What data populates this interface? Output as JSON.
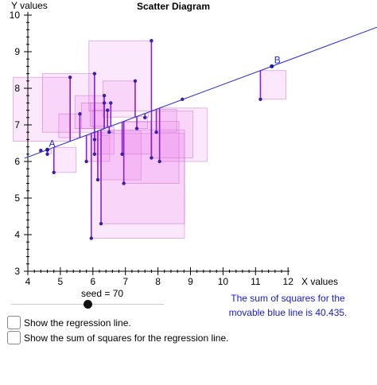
{
  "chart_data": {
    "type": "scatter",
    "title": "Scatter Diagram",
    "xlabel": "X values",
    "ylabel": "Y values",
    "xlim": [
      4,
      12
    ],
    "ylim": [
      3,
      10
    ],
    "xticks": [
      "4",
      "5",
      "6",
      "7",
      "8",
      "9",
      "10",
      "11",
      "12"
    ],
    "yticks": [
      "3",
      "4",
      "5",
      "6",
      "7",
      "8",
      "9",
      "10"
    ],
    "points": [
      {
        "x": 4.4,
        "y": 6.3
      },
      {
        "x": 4.6,
        "y": 6.2
      },
      {
        "x": 4.8,
        "y": 5.7
      },
      {
        "x": 5.3,
        "y": 8.3
      },
      {
        "x": 5.6,
        "y": 7.3
      },
      {
        "x": 5.8,
        "y": 6.0
      },
      {
        "x": 5.95,
        "y": 3.9
      },
      {
        "x": 6.05,
        "y": 8.4
      },
      {
        "x": 6.05,
        "y": 6.6
      },
      {
        "x": 6.05,
        "y": 6.2
      },
      {
        "x": 6.15,
        "y": 5.5
      },
      {
        "x": 6.25,
        "y": 4.3
      },
      {
        "x": 6.35,
        "y": 7.8
      },
      {
        "x": 6.35,
        "y": 7.6
      },
      {
        "x": 6.45,
        "y": 7.4
      },
      {
        "x": 6.5,
        "y": 6.8
      },
      {
        "x": 6.55,
        "y": 7.6
      },
      {
        "x": 6.9,
        "y": 6.2
      },
      {
        "x": 6.95,
        "y": 5.4
      },
      {
        "x": 7.3,
        "y": 8.2
      },
      {
        "x": 7.35,
        "y": 6.9
      },
      {
        "x": 7.6,
        "y": 7.2
      },
      {
        "x": 7.8,
        "y": 9.3
      },
      {
        "x": 7.8,
        "y": 6.1
      },
      {
        "x": 7.95,
        "y": 6.8
      },
      {
        "x": 8.05,
        "y": 6.0
      },
      {
        "x": 8.75,
        "y": 7.7
      },
      {
        "x": 11.15,
        "y": 7.7
      }
    ],
    "line": {
      "x1": 4.6,
      "y1": 6.32,
      "x2": 11.5,
      "y2": 8.6
    },
    "point_labels": [
      "A",
      "B"
    ],
    "annotations": {
      "label_a": "A",
      "label_b": "B"
    },
    "colors": {
      "line": "#2222dd",
      "points": "#3a1fa8",
      "residual": "#8a22c8",
      "square_fill": "#ee82ee",
      "square_stroke": "#c060c0"
    },
    "grid": false
  },
  "controls": {
    "seed_label": "seed = 70",
    "seed_value": 70,
    "sum_of_squares_text_line1": "The sum of squares for the",
    "sum_of_squares_text_line2": "movable blue line is 40.435.",
    "checkbox_regression_label": "Show the regression line.",
    "checkbox_sos_label": "Show the sum of squares for the regression line."
  }
}
